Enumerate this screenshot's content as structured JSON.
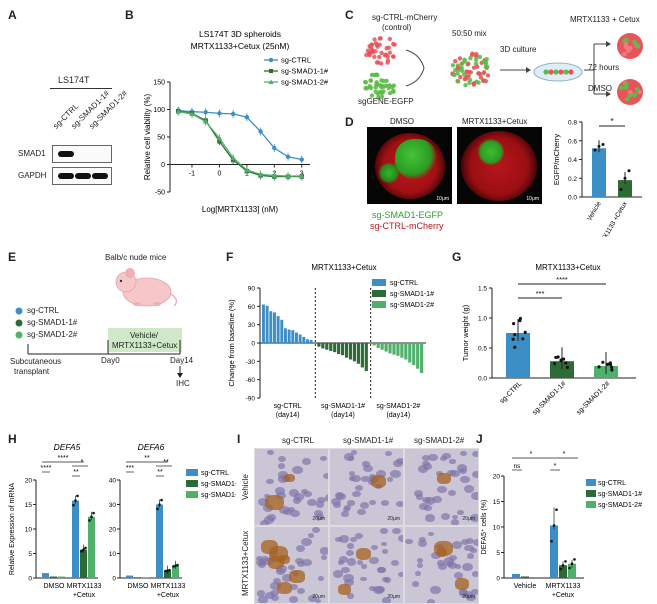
{
  "panels": [
    "A",
    "B",
    "C",
    "D",
    "E",
    "F",
    "G",
    "H",
    "I",
    "J"
  ],
  "a": {
    "cell_line": "LS174T",
    "lanes": [
      "sg-CTRL",
      "sg-SMAD1-1#",
      "sg-SMAD1-2#"
    ],
    "rows": [
      "SMAD1",
      "GAPDH"
    ]
  },
  "b": {
    "chart_data": {
      "type": "line",
      "title": "LS174T 3D spheroids",
      "subtitle": "MRTX1133+Cetux (25nM)",
      "xlabel": "Log[MRTX1133] (nM)",
      "ylabel": "Relative cell viability (%)",
      "xlim": [
        -1.8,
        3.3
      ],
      "ylim": [
        -50,
        150
      ],
      "yticks": [
        -50,
        0,
        50,
        100,
        150
      ],
      "xticks": [
        -1,
        0,
        1,
        2,
        3
      ],
      "series": [
        {
          "name": "sg-CTRL",
          "color": "#3c8fc6",
          "x": [
            -1.5,
            -1,
            -0.5,
            0,
            0.5,
            1,
            1.5,
            2,
            2.5,
            3
          ],
          "y": [
            98,
            96,
            95,
            93,
            92,
            86,
            60,
            30,
            14,
            9
          ]
        },
        {
          "name": "sg-SMAD1-1#",
          "color": "#2c6b35",
          "x": [
            -1.5,
            -1,
            -0.5,
            0,
            0.5,
            1,
            1.5,
            2,
            2.5,
            3
          ],
          "y": [
            97,
            93,
            80,
            42,
            8,
            -12,
            -20,
            -22,
            -22,
            -22
          ]
        },
        {
          "name": "sg-SMAD1-2#",
          "color": "#4fb06b",
          "x": [
            -1.5,
            -1,
            -0.5,
            0,
            0.5,
            1,
            1.5,
            2,
            2.5,
            3
          ],
          "y": [
            96,
            92,
            78,
            48,
            12,
            -10,
            -18,
            -20,
            -21,
            -21
          ]
        }
      ]
    }
  },
  "c": {
    "label_ctrl": "sg-CTRL-mCherry",
    "label_ctrl2": "(control)",
    "label_gene": "sgGENE-EGFP",
    "mix": "50:50 mix",
    "culture": "3D culture",
    "treat": "MRTX1133 + Cetux",
    "time": "72 hours",
    "dmso": "DMSO"
  },
  "d": {
    "img1": "DMSO",
    "img2": "MRTX1133+Cetux",
    "scale": "10μm",
    "legend1": "sg-SMAD1-EGFP",
    "legend2": "sg-CTRL-mCherry",
    "chart_data": {
      "type": "bar",
      "categories": [
        "Vehicle",
        "MRTX1133 +Cetux"
      ],
      "values": [
        0.52,
        0.18
      ],
      "ylabel": "EGFP/mCherry",
      "ylim": [
        0,
        0.8
      ],
      "yticks": [
        0,
        0.2,
        0.4,
        0.6,
        0.8
      ],
      "sig": "*"
    }
  },
  "e": {
    "mice": "Balb/c nude mice",
    "groups": [
      "sg-CTRL",
      "sg-SMAD1-1#",
      "sg-SMAD1-2#"
    ],
    "treat1": "Vehicle/",
    "treat2": "MRTX1133+Cetux",
    "step1": "Subcutaneous",
    "step1b": "transplant",
    "day0": "Day0",
    "day14": "Day14",
    "ihc": "IHC"
  },
  "f": {
    "chart_data": {
      "type": "bar",
      "title": "MRTX1133+Cetux",
      "ylabel": "Change from baseline (%)",
      "ylim": [
        -90,
        90
      ],
      "yticks": [
        -90,
        -60,
        -30,
        0,
        30,
        60,
        90
      ],
      "legend": [
        "sg-CTRL",
        "sg-SMAD1-1#",
        "sg-SMAD1-2#"
      ],
      "groups": [
        "sg-CTRL (day14)",
        "sg-SMAD1-1# (day14)",
        "sg-SMAD1-2# (day14)"
      ],
      "series": [
        {
          "name": "sg-CTRL",
          "color": "#3c8fc6",
          "values": [
            63,
            61,
            52,
            50,
            44,
            38,
            24,
            22,
            21,
            17,
            14,
            10,
            6,
            5
          ]
        },
        {
          "name": "sg-SMAD1-1#",
          "color": "#2c6b35",
          "values": [
            -6,
            -9,
            -11,
            -13,
            -15,
            -18,
            -20,
            -24,
            -27,
            -30,
            -34,
            -40,
            -46
          ]
        },
        {
          "name": "sg-SMAD1-2#",
          "color": "#4fb06b",
          "values": [
            -4,
            -8,
            -11,
            -14,
            -17,
            -19,
            -21,
            -24,
            -27,
            -32,
            -36,
            -42,
            -49
          ]
        }
      ]
    }
  },
  "g": {
    "chart_data": {
      "type": "bar",
      "title": "MRTX1133+Cetux",
      "ylabel": "Tumor weight (g)",
      "ylim": [
        0,
        1.5
      ],
      "yticks": [
        0,
        0.5,
        1.0,
        1.5
      ],
      "categories": [
        "sg-CTRL",
        "sg-SMAD1-1#",
        "sg-SMAD1-2#"
      ],
      "values": [
        0.75,
        0.28,
        0.2
      ],
      "sig": [
        "***",
        "****"
      ]
    }
  },
  "h": {
    "chart_data": [
      {
        "type": "bar",
        "title": "DEFA5",
        "ylabel": "Relative Expression of mRNA",
        "ylim": [
          0,
          20
        ],
        "yticks": [
          0,
          5,
          10,
          15,
          20
        ],
        "categories": [
          "DMSO",
          "MRTX1133 +Cetux"
        ],
        "series": [
          {
            "name": "sg-CTRL",
            "color": "#3c8fc6",
            "values": [
              1,
              15.8
            ]
          },
          {
            "name": "sg-SMAD1-1#",
            "color": "#2c6b35",
            "values": [
              0.3,
              5.8
            ]
          },
          {
            "name": "sg-SMAD1-2#",
            "color": "#4fb06b",
            "values": [
              0.3,
              12.5
            ]
          }
        ],
        "sig": [
          "****",
          "****",
          "*",
          "**"
        ]
      },
      {
        "type": "bar",
        "title": "DEFA6",
        "ylim": [
          0,
          40
        ],
        "yticks": [
          0,
          10,
          20,
          30,
          40
        ],
        "categories": [
          "DMSO",
          "MRTX1133 +Cetux"
        ],
        "series": [
          {
            "name": "sg-CTRL",
            "color": "#3c8fc6",
            "values": [
              1,
              30
            ]
          },
          {
            "name": "sg-SMAD1-1#",
            "color": "#2c6b35",
            "values": [
              0.3,
              3
            ]
          },
          {
            "name": "sg-SMAD1-2#",
            "color": "#4fb06b",
            "values": [
              0.3,
              5
            ]
          }
        ],
        "sig": [
          "**",
          "***",
          "**",
          "**"
        ]
      }
    ],
    "legend": [
      "sg-CTRL",
      "sg-SMAD1-1#",
      "sg-SMAD1-2#"
    ]
  },
  "i": {
    "cols": [
      "sg-CTRL",
      "sg-SMAD1-1#",
      "sg-SMAD1-2#"
    ],
    "rows": [
      "Vehicle",
      "MRTX1133+Cetux"
    ],
    "scale": "20μm"
  },
  "j": {
    "chart_data": {
      "type": "bar",
      "ylabel": "DEFA5⁺ cells (%)",
      "ylim": [
        0,
        20
      ],
      "yticks": [
        0,
        5,
        10,
        15,
        20
      ],
      "categories": [
        "Vehicle",
        "MRTX1133 +Cetux"
      ],
      "series": [
        {
          "name": "sg-CTRL",
          "color": "#3c8fc6",
          "values": [
            0.8,
            10.3
          ]
        },
        {
          "name": "sg-SMAD1-1#",
          "color": "#2c6b35",
          "values": [
            0.3,
            2.5
          ]
        },
        {
          "name": "sg-SMAD1-2#",
          "color": "#4fb06b",
          "values": [
            0.2,
            2.8
          ]
        }
      ],
      "sig": [
        "*",
        "ns",
        "*",
        "*"
      ]
    },
    "legend": [
      "sg-CTRL",
      "sg-SMAD1-1#",
      "sg-SMAD1-2#"
    ]
  },
  "colors": {
    "ctrl": "#3c8fc6",
    "s1": "#2c6b35",
    "s2": "#4fb06b"
  }
}
